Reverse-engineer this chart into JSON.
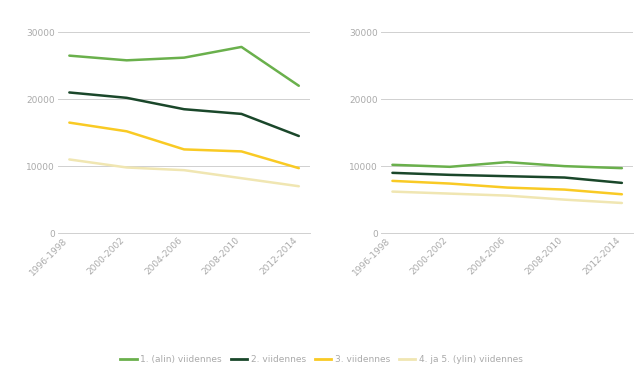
{
  "x_labels": [
    "1996-1998",
    "2000-2002",
    "2004-2006",
    "2008-2010",
    "2012-2014"
  ],
  "x_positions": [
    0,
    1,
    2,
    3,
    4
  ],
  "left_panel": {
    "line1": [
      26500,
      25800,
      26200,
      27800,
      22000
    ],
    "line2": [
      21000,
      20200,
      18500,
      17800,
      14500
    ],
    "line3": [
      16500,
      15200,
      12500,
      12200,
      9700
    ],
    "line4": [
      11000,
      9800,
      9400,
      8200,
      7000
    ]
  },
  "right_panel": {
    "line1": [
      10200,
      9900,
      10600,
      10000,
      9700
    ],
    "line2": [
      9000,
      8700,
      8500,
      8300,
      7500
    ],
    "line3": [
      7800,
      7400,
      6800,
      6500,
      5800
    ],
    "line4": [
      6200,
      5900,
      5600,
      5000,
      4500
    ]
  },
  "colors": [
    "#6ab04c",
    "#1a472a",
    "#f9ca24",
    "#f0e6b2"
  ],
  "legend_labels": [
    "1. (alin) viidennes",
    "2. viidennes",
    "3. viidennes",
    "4. ja 5. (ylin) viidennes"
  ],
  "ylim": [
    0,
    32000
  ],
  "yticks": [
    0,
    10000,
    20000,
    30000
  ],
  "background_color": "#ffffff",
  "line_width": 1.8,
  "tick_color": "#aaaaaa",
  "grid_color": "#d0d0d0",
  "spine_color": "#d0d0d0"
}
